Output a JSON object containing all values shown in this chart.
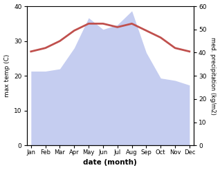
{
  "months": [
    "Jan",
    "Feb",
    "Mar",
    "Apr",
    "May",
    "Jun",
    "Jul",
    "Aug",
    "Sep",
    "Oct",
    "Nov",
    "Dec"
  ],
  "temperature": [
    27,
    28,
    30,
    33,
    35,
    35,
    34,
    35,
    33,
    31,
    28,
    27
  ],
  "precipitation": [
    32,
    32,
    33,
    42,
    55,
    50,
    52,
    58,
    40,
    29,
    28,
    26
  ],
  "temp_color": "#c0504d",
  "precip_fill_color": "#c5cdf0",
  "ylim_temp": [
    0,
    40
  ],
  "ylim_precip": [
    0,
    60
  ],
  "xlabel": "date (month)",
  "ylabel_left": "max temp (C)",
  "ylabel_right": "med. precipitation (kg/m2)",
  "bg_color": "#ffffff",
  "plot_bg_color": "#ffffff",
  "temp_linewidth": 2.0
}
